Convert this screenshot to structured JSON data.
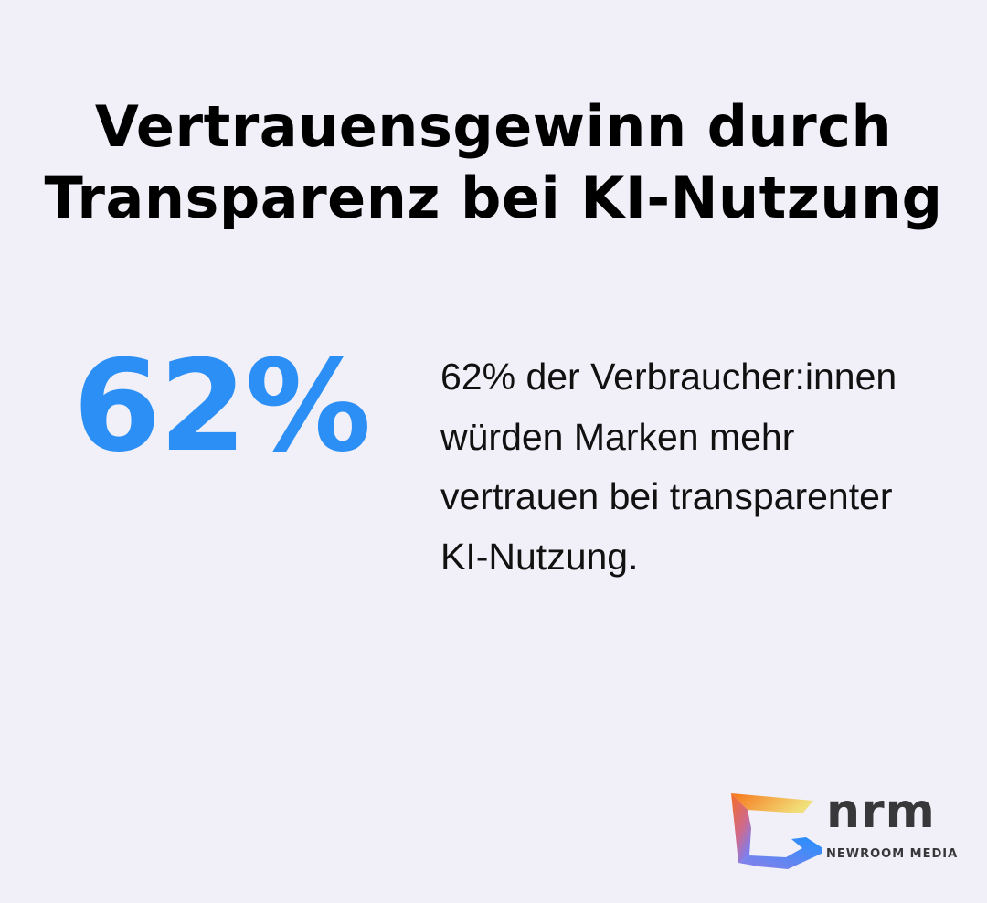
{
  "title": "Vertrauensgewinn durch Transparenz bei KI-Nutzung",
  "stat": {
    "value": "62%",
    "color": "#2b8ff5"
  },
  "description": "62% der Verbraucher:innen würden Marken mehr vertrauen bei transparenter KI-Nutzung.",
  "logo": {
    "name": "nrm",
    "tagline": "NEWROOM MEDIA"
  }
}
